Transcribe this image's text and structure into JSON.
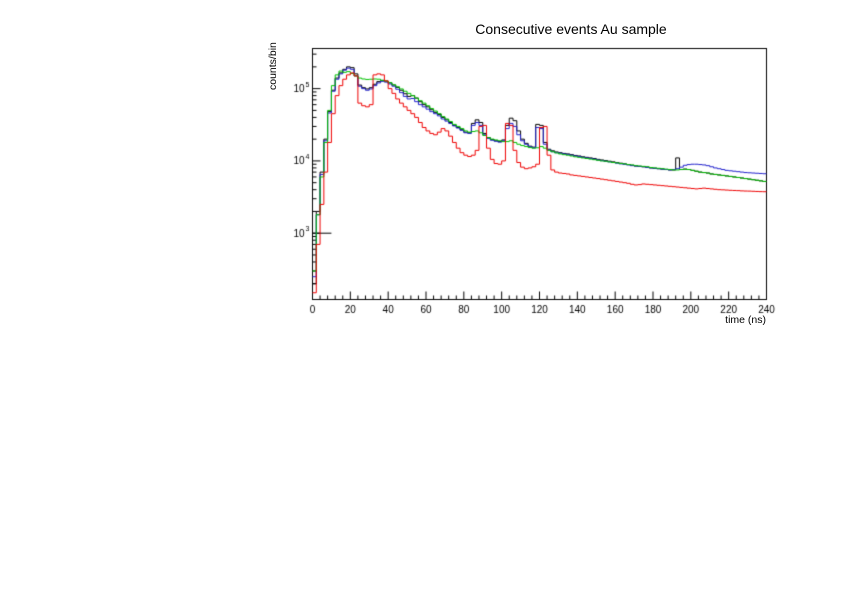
{
  "page": {
    "background": "#ffffff"
  },
  "chart_data": {
    "type": "histogram-step",
    "title": "Consecutive events Au sample",
    "xlabel": "time (ns)",
    "ylabel": "counts/bin",
    "x_range": [
      0,
      240
    ],
    "bin_width_ns": 2,
    "y_scale": "log",
    "ylim": [
      121,
      359000
    ],
    "x_major_tick_step": 20,
    "x_minor_tick_step": 4,
    "x_tick_labels": [
      0,
      20,
      40,
      60,
      80,
      100,
      120,
      140,
      160,
      180,
      200,
      220,
      240
    ],
    "y_major_ticks": [
      1000,
      10000,
      100000
    ],
    "y_tick_exponents": [
      3,
      4,
      5
    ],
    "grid": false,
    "legend": null,
    "frame_color": "#000000",
    "annotations": [
      {
        "type": "hline-segment",
        "y": 1000,
        "x_start": 0,
        "x_end": 10,
        "color": "#000000"
      }
    ],
    "series": [
      {
        "name": "series-black",
        "color": "#000000",
        "values": [
          200,
          2000,
          7000,
          20000,
          48000,
          95000,
          140000,
          165000,
          185000,
          200000,
          195000,
          160000,
          112000,
          103000,
          99000,
          103000,
          115000,
          125000,
          130000,
          127000,
          120000,
          112000,
          104000,
          95000,
          85000,
          78000,
          80000,
          74000,
          66000,
          60000,
          56000,
          51000,
          47000,
          44000,
          40000,
          37000,
          34000,
          31000,
          29000,
          27000,
          25000,
          24500,
          33000,
          37000,
          34000,
          24000,
          21000,
          19800,
          19000,
          18500,
          19500,
          31000,
          39000,
          36000,
          26000,
          20000,
          17500,
          16000,
          15500,
          32000,
          31000,
          18000,
          14500,
          13800,
          13300,
          13000,
          12700,
          12500,
          12200,
          11900,
          11700,
          11400,
          11200,
          11000,
          10800,
          10500,
          10300,
          10100,
          9900,
          9700,
          9500,
          9300,
          9100,
          8900,
          8700,
          8500,
          8400,
          8300,
          8200,
          8000,
          7900,
          7800,
          7700,
          7600,
          7500,
          7500,
          11000,
          7600,
          7700,
          7600,
          7400,
          7200,
          7000,
          6900,
          6800,
          6600,
          6500,
          6400,
          6300,
          6200,
          6100,
          6000,
          5900,
          5800,
          5700,
          5600,
          5500,
          5400,
          5300,
          5200
        ]
      },
      {
        "name": "series-blue",
        "color": "#2222cc",
        "values": [
          250,
          1800,
          6500,
          19000,
          46000,
          92000,
          135000,
          160000,
          180000,
          192000,
          185000,
          150000,
          108000,
          100000,
          95000,
          99000,
          110000,
          120000,
          126000,
          123000,
          116000,
          108000,
          98000,
          88000,
          78000,
          72000,
          73000,
          66000,
          60000,
          56000,
          52000,
          48000,
          45000,
          42000,
          38000,
          35500,
          33000,
          30500,
          28500,
          26500,
          24500,
          24000,
          31000,
          34000,
          31000,
          23000,
          20500,
          19300,
          18700,
          18200,
          19000,
          28000,
          33000,
          30000,
          23000,
          19000,
          17000,
          15700,
          15200,
          29000,
          28000,
          17000,
          14200,
          13400,
          13000,
          12800,
          12500,
          12300,
          12000,
          11700,
          11500,
          11200,
          11000,
          10800,
          10600,
          10300,
          10100,
          9900,
          9700,
          9500,
          9300,
          9100,
          9000,
          8800,
          8600,
          8500,
          8400,
          8300,
          8100,
          8000,
          7900,
          7800,
          7700,
          7600,
          7500,
          7600,
          7800,
          8200,
          8700,
          8900,
          9000,
          9000,
          8900,
          8800,
          8600,
          8300,
          8000,
          7800,
          7600,
          7400,
          7300,
          7200,
          7100,
          7000,
          6900,
          6850,
          6800,
          6750,
          6700,
          6650
        ]
      },
      {
        "name": "series-green",
        "color": "#00c000",
        "values": [
          300,
          1800,
          6000,
          18000,
          50000,
          110000,
          155000,
          175000,
          168000,
          172000,
          162000,
          150000,
          140000,
          136000,
          134000,
          135000,
          136000,
          135000,
          130000,
          127000,
          121000,
          113000,
          106000,
          99000,
          92000,
          86000,
          80000,
          74000,
          68000,
          63000,
          58000,
          53000,
          49000,
          45000,
          41000,
          38000,
          35000,
          32000,
          30000,
          28000,
          26000,
          25000,
          25500,
          26000,
          24500,
          22500,
          21000,
          20000,
          19500,
          19000,
          18500,
          18500,
          19000,
          18000,
          17000,
          16300,
          15800,
          15300,
          15000,
          15200,
          15800,
          15000,
          14000,
          13400,
          12900,
          12500,
          12200,
          12000,
          11700,
          11400,
          11200,
          11000,
          10800,
          10600,
          10400,
          10200,
          10000,
          9900,
          9700,
          9500,
          9400,
          9200,
          9100,
          8900,
          8800,
          8600,
          8500,
          8400,
          8300,
          8100,
          8000,
          7900,
          7800,
          7700,
          7600,
          7500,
          7500,
          7600,
          7700,
          7600,
          7400,
          7200,
          7000,
          6900,
          6800,
          6600,
          6500,
          6400,
          6300,
          6200,
          6100,
          6000,
          5900,
          5800,
          5700,
          5600,
          5500,
          5400,
          5300,
          5200
        ]
      },
      {
        "name": "series-red",
        "color": "#ee0000",
        "values": [
          150,
          700,
          2500,
          7000,
          18000,
          45000,
          80000,
          110000,
          135000,
          155000,
          165000,
          150000,
          63000,
          58000,
          56000,
          60000,
          155000,
          160000,
          155000,
          128000,
          100000,
          86000,
          72000,
          63000,
          56000,
          50000,
          45000,
          40000,
          34000,
          29000,
          26000,
          24000,
          23000,
          25000,
          28000,
          26000,
          22000,
          18000,
          15000,
          13000,
          12000,
          11500,
          12000,
          14000,
          30000,
          31000,
          15000,
          10500,
          9200,
          9000,
          10000,
          33000,
          31000,
          14000,
          9500,
          8200,
          7800,
          8000,
          8300,
          9000,
          29000,
          30000,
          12000,
          7500,
          7000,
          6800,
          6700,
          6600,
          6400,
          6300,
          6200,
          6100,
          6000,
          5900,
          5800,
          5700,
          5600,
          5500,
          5400,
          5300,
          5200,
          5100,
          5000,
          4900,
          4750,
          4650,
          4700,
          4800,
          4750,
          4700,
          4650,
          4600,
          4550,
          4500,
          4450,
          4400,
          4350,
          4300,
          4250,
          4200,
          4150,
          4100,
          4150,
          4200,
          4150,
          4100,
          4050,
          4000,
          3980,
          3950,
          3920,
          3900,
          3880,
          3850,
          3830,
          3820,
          3800,
          3780,
          3760,
          3750
        ]
      }
    ]
  }
}
